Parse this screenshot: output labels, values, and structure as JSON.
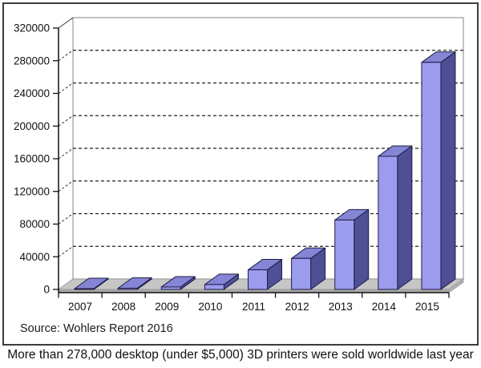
{
  "chart_data": {
    "type": "bar",
    "style": "3d-perspective-bars",
    "title": "",
    "xlabel": "",
    "ylabel": "",
    "categories": [
      "2007",
      "2008",
      "2009",
      "2010",
      "2011",
      "2012",
      "2013",
      "2014",
      "2015"
    ],
    "values": [
      500,
      1500,
      3000,
      6000,
      24000,
      38000,
      85000,
      163000,
      278000
    ],
    "ylim": [
      0,
      320000
    ],
    "ytick_step": 40000,
    "yticks": [
      0,
      40000,
      80000,
      120000,
      160000,
      200000,
      240000,
      280000,
      320000
    ],
    "grid": "horizontal-dashed",
    "legend_position": "none",
    "source": "Source: Wohlers Report 2016",
    "colors": {
      "bar_front": "#9c9cee",
      "bar_top": "#8585d6",
      "bar_side": "#4f4f96",
      "bar_outline": "#1c1c45",
      "floor_top": "#c6c6c6",
      "floor_front": "#a8a8a8",
      "floor_right": "#b4b4b4",
      "wall_fill": "#ffffff",
      "wall_outline": "#999999",
      "gridline": "#222222",
      "axis": "#111111",
      "tick_label": "#111111",
      "frame_border": "#3c3c3c",
      "background": "#ffffff"
    }
  },
  "caption": "More than 278,000 desktop (under $5,000) 3D printers were sold worldwide last year"
}
